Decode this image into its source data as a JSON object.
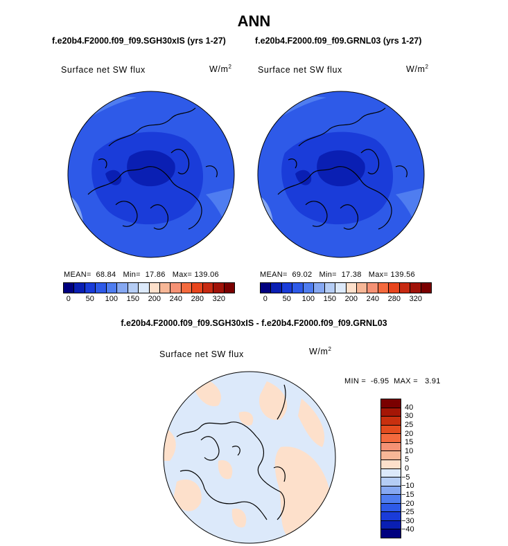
{
  "title": "ANN",
  "case_left": "f.e20b4.F2000.f09_f09.SGH30xIS (yrs 1-27)",
  "case_right": "f.e20b4.F2000.f09_f09.GRNL03 (yrs 1-27)",
  "diff_title": "f.e20b4.F2000.f09_f09.SGH30xIS - f.e20b4.F2000.f09_f09.GRNL03",
  "variable": "Surface net SW flux",
  "units": {
    "base": "W/m",
    "exp": "2"
  },
  "panel_left": {
    "mean_label": "MEAN=",
    "mean": "68.84",
    "min_label": "Min=",
    "min": "17.86",
    "max_label": "Max=",
    "max": "139.06"
  },
  "panel_right": {
    "mean_label": "MEAN=",
    "mean": "69.02",
    "min_label": "Min=",
    "min": "17.38",
    "max_label": "Max=",
    "max": "139.56"
  },
  "panel_diff": {
    "min_label": "MIN =",
    "min": "-6.95",
    "max_label": "MAX =",
    "max": "3.91"
  },
  "top_colorbar": {
    "colors": [
      "#00007f",
      "#0a1fb3",
      "#1a3cd9",
      "#2e5ae8",
      "#4f7df0",
      "#86a8f2",
      "#b5cdf5",
      "#dce9fa",
      "#fde0cb",
      "#f7b797",
      "#f59275",
      "#f46a3e",
      "#e8451d",
      "#c72a12",
      "#a01208",
      "#7a0000"
    ],
    "labels": [
      "0",
      "50",
      "100",
      "150",
      "200",
      "240",
      "280",
      "320"
    ]
  },
  "diff_colorbar": {
    "colors": [
      "#7a0000",
      "#a51606",
      "#c8300f",
      "#e44c1f",
      "#f46a3e",
      "#f59275",
      "#f7b797",
      "#fde0cb",
      "#dce9fa",
      "#b5cdf5",
      "#86a8f2",
      "#4f7df0",
      "#2e5ae8",
      "#1a3cd9",
      "#0a1fb3",
      "#00007f"
    ],
    "labels": [
      "40",
      "30",
      "25",
      "20",
      "15",
      "10",
      "5",
      "0",
      "−5",
      "−10",
      "−15",
      "−20",
      "−25",
      "−30",
      "−40"
    ]
  },
  "map_colors": {
    "deep": "#0a1fb3",
    "mid": "#1a3cd9",
    "base": "#2e5ae8",
    "light": "#4f7df0",
    "pale": "#86a8f2",
    "diff_neg": "#dce9fa",
    "diff_pos": "#fde0cb"
  }
}
